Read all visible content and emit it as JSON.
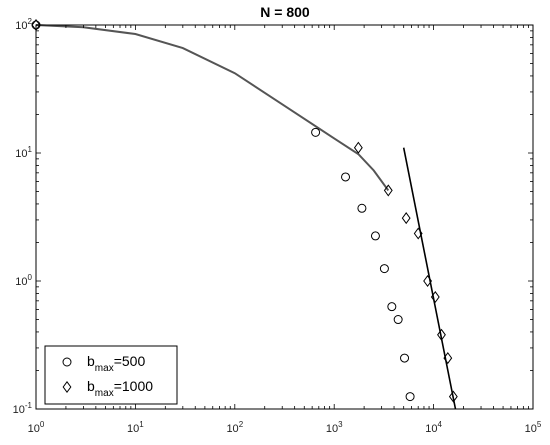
{
  "chart_data": {
    "type": "scatter",
    "title": "N = 800",
    "xlabel": "",
    "ylabel": "",
    "xscale": "log",
    "yscale": "log",
    "xlim": [
      1,
      100000
    ],
    "ylim": [
      0.1,
      100
    ],
    "grid": false,
    "legend_position": "bottom-left",
    "x_tick_labels": [
      {
        "base": "10",
        "exp": "0"
      },
      {
        "base": "10",
        "exp": "1"
      },
      {
        "base": "10",
        "exp": "2"
      },
      {
        "base": "10",
        "exp": "3"
      },
      {
        "base": "10",
        "exp": "4"
      },
      {
        "base": "10",
        "exp": "5"
      }
    ],
    "y_tick_labels": [
      {
        "base": "10",
        "exp": "-1"
      },
      {
        "base": "10",
        "exp": "0"
      },
      {
        "base": "10",
        "exp": "1"
      },
      {
        "base": "10",
        "exp": "2"
      }
    ],
    "series": [
      {
        "name_base": "b",
        "name_sub": "max",
        "name_suffix": "=500",
        "marker": "circle",
        "points": [
          [
            1,
            100
          ],
          [
            650,
            14.5
          ],
          [
            1300,
            6.5
          ],
          [
            1900,
            3.7
          ],
          [
            2600,
            2.25
          ],
          [
            3200,
            1.25
          ],
          [
            3800,
            0.63
          ],
          [
            4400,
            0.5
          ],
          [
            5100,
            0.25
          ],
          [
            5800,
            0.125
          ]
        ]
      },
      {
        "name_base": "b",
        "name_sub": "max",
        "name_suffix": "=1000",
        "marker": "diamond",
        "points": [
          [
            1,
            100
          ],
          [
            1750,
            11
          ],
          [
            3500,
            5.1
          ],
          [
            5300,
            3.1
          ],
          [
            7000,
            2.35
          ],
          [
            8700,
            1.0
          ],
          [
            10400,
            0.75
          ],
          [
            12000,
            0.38
          ],
          [
            13900,
            0.25
          ],
          [
            15800,
            0.125
          ]
        ]
      }
    ],
    "fit_lines": [
      {
        "style": "curve",
        "points": [
          [
            1,
            100
          ],
          [
            3,
            96
          ],
          [
            10,
            85
          ],
          [
            30,
            66
          ],
          [
            100,
            42
          ],
          [
            300,
            24
          ],
          [
            1000,
            13
          ],
          [
            1750,
            9.8
          ],
          [
            2500,
            7.3
          ],
          [
            3500,
            5.1
          ]
        ]
      },
      {
        "style": "straight",
        "points": [
          [
            5000,
            11
          ],
          [
            16600,
            0.1
          ]
        ]
      }
    ],
    "colors": {
      "axis": "#000000",
      "markers": "#000000",
      "curve": "#555555",
      "line": "#000000"
    }
  }
}
